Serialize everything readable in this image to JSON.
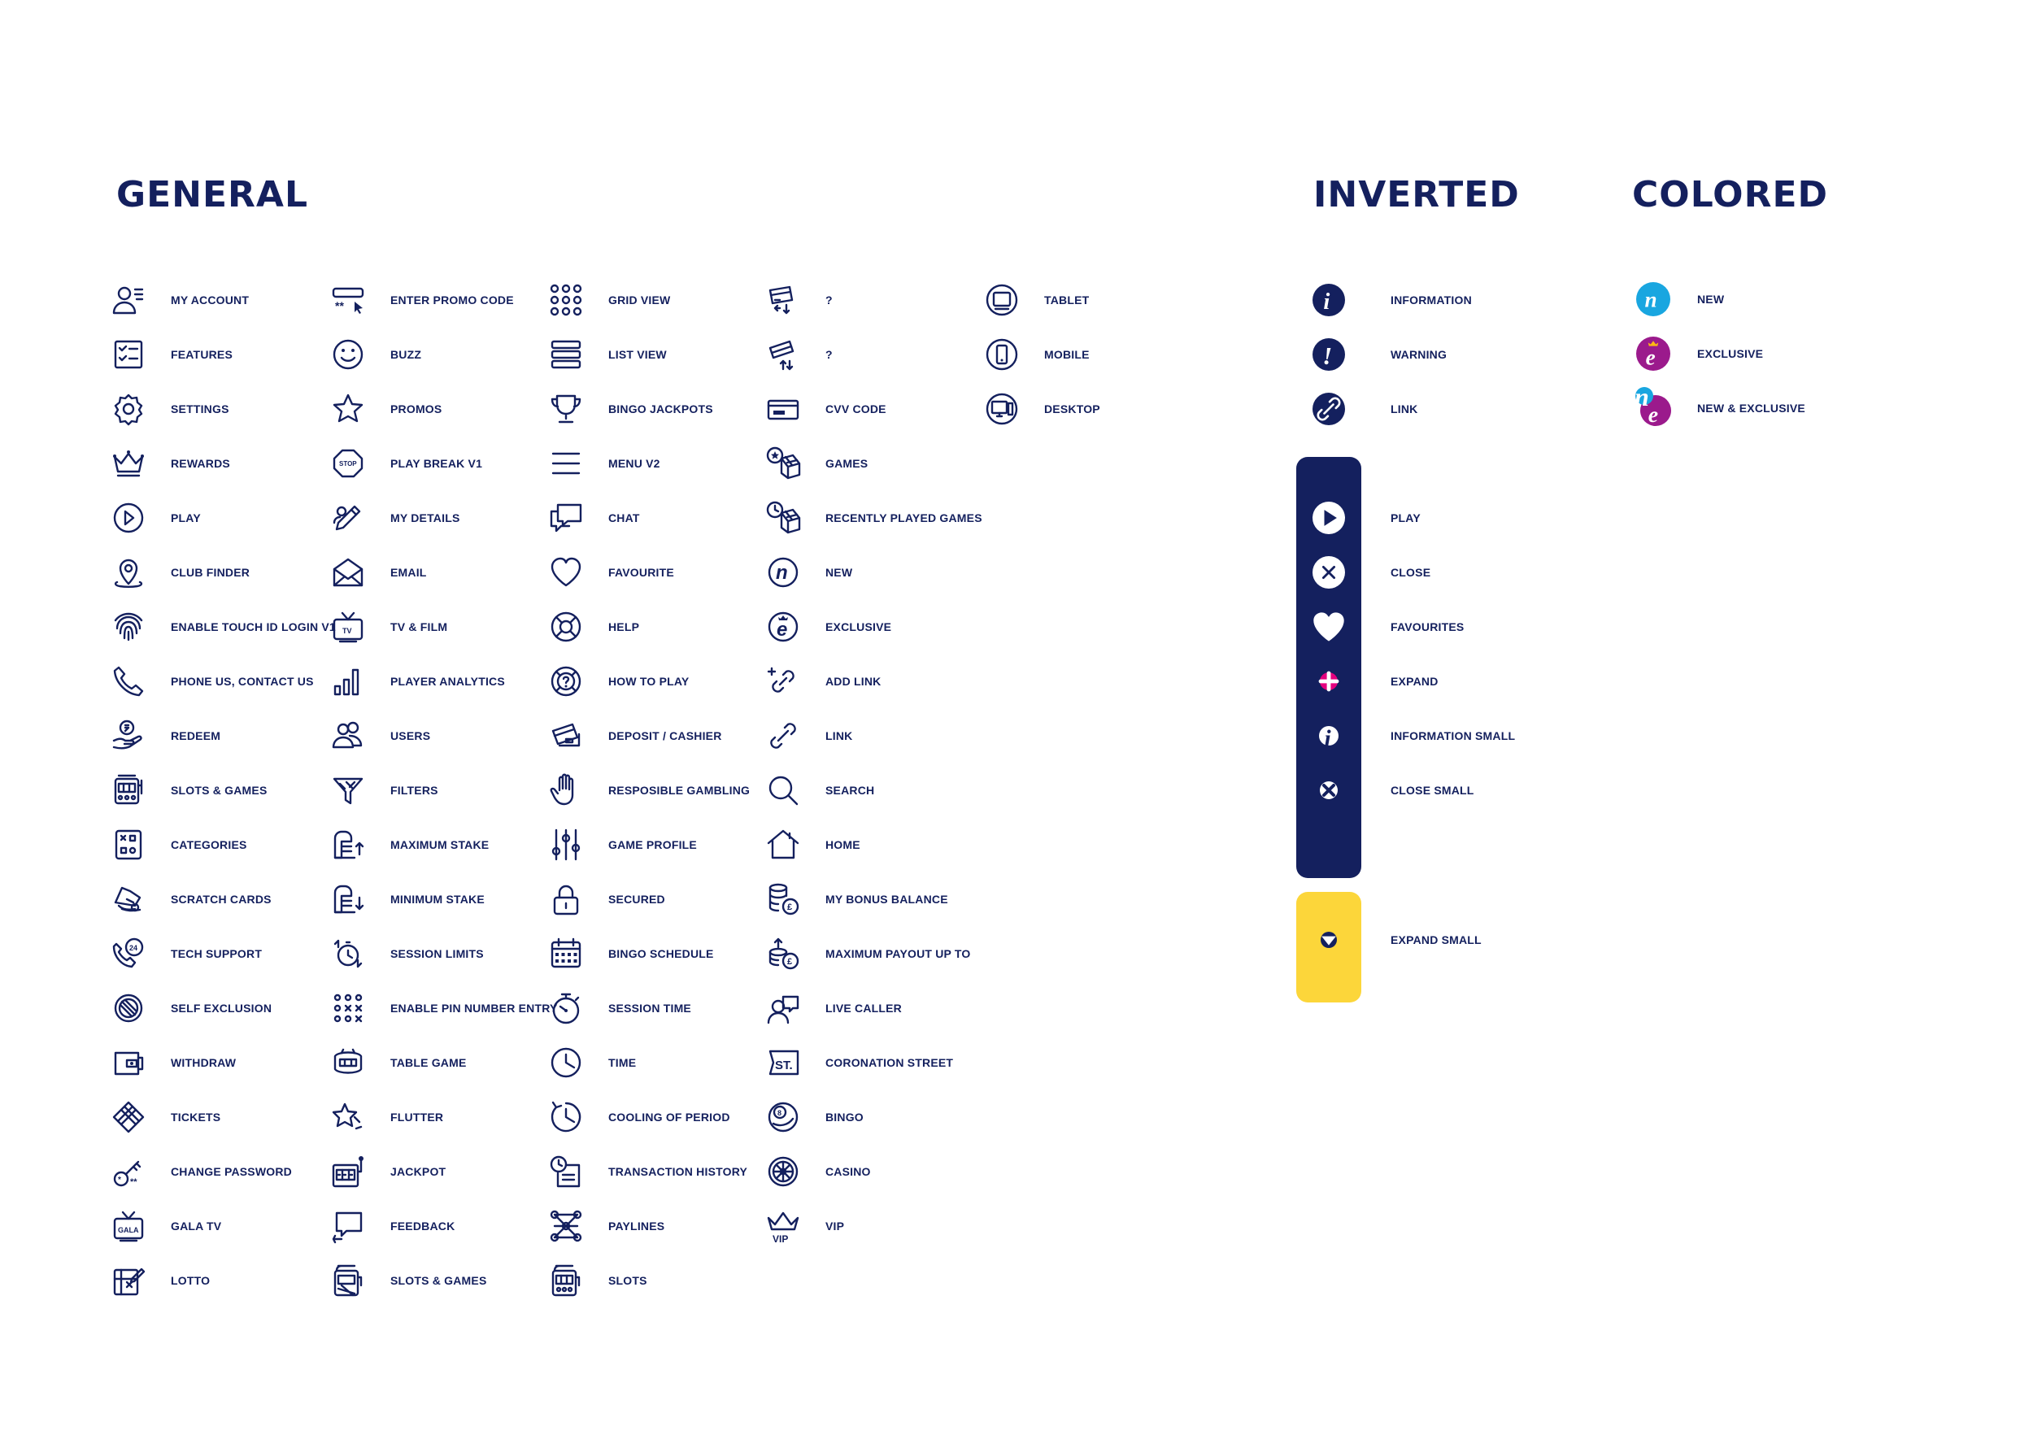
{
  "headings": {
    "general": "GENERAL",
    "inverted": "INVERTED",
    "colored": "COLORED"
  },
  "colors": {
    "navy": "#14205e",
    "yellow": "#fcd63a",
    "pink": "#e5007e",
    "cyan": "#19a6e0",
    "purple": "#9b1a8c"
  },
  "general": {
    "col1": [
      {
        "icon": "my-account-icon",
        "label": "MY ACCOUNT"
      },
      {
        "icon": "features-icon",
        "label": "FEATURES"
      },
      {
        "icon": "settings-icon",
        "label": "SETTINGS"
      },
      {
        "icon": "rewards-icon",
        "label": "REWARDS"
      },
      {
        "icon": "play-icon",
        "label": "PLAY"
      },
      {
        "icon": "club-finder-icon",
        "label": "CLUB FINDER"
      },
      {
        "icon": "fingerprint-icon",
        "label": "ENABLE TOUCH ID LOGIN V1"
      },
      {
        "icon": "phone-icon",
        "label": "PHONE US, CONTACT US"
      },
      {
        "icon": "redeem-icon",
        "label": "REDEEM"
      },
      {
        "icon": "slots-games-icon",
        "label": "SLOTS & GAMES"
      },
      {
        "icon": "categories-icon",
        "label": "CATEGORIES"
      },
      {
        "icon": "scratch-cards-icon",
        "label": "SCRATCH CARDS"
      },
      {
        "icon": "tech-support-icon",
        "label": "TECH SUPPORT"
      },
      {
        "icon": "self-exclusion-icon",
        "label": "SELF EXCLUSION"
      },
      {
        "icon": "withdraw-icon",
        "label": "WITHDRAW"
      },
      {
        "icon": "tickets-icon",
        "label": "TICKETS"
      },
      {
        "icon": "change-password-icon",
        "label": "CHANGE PASSWORD"
      },
      {
        "icon": "gala-tv-icon",
        "label": "GALA TV",
        "tvText": "GALA"
      },
      {
        "icon": "lotto-icon",
        "label": "LOTTO"
      }
    ],
    "col2": [
      {
        "icon": "promo-code-icon",
        "label": "ENTER PROMO CODE",
        "code": "**"
      },
      {
        "icon": "buzz-icon",
        "label": "BUZZ"
      },
      {
        "icon": "star-icon",
        "label": "PROMOS"
      },
      {
        "icon": "stop-icon",
        "label": "PLAY BREAK  V1",
        "stopText": "STOP"
      },
      {
        "icon": "pencil-icon",
        "label": "MY DETAILS"
      },
      {
        "icon": "email-icon",
        "label": "EMAIL"
      },
      {
        "icon": "tv-icon",
        "label": "TV & FILM",
        "tvText": "TV"
      },
      {
        "icon": "analytics-icon",
        "label": "PLAYER ANALYTICS"
      },
      {
        "icon": "users-icon",
        "label": "USERS"
      },
      {
        "icon": "filters-icon",
        "label": "FILTERS"
      },
      {
        "icon": "maximum-stake-icon",
        "label": "MAXIMUM STAKE"
      },
      {
        "icon": "minimum-stake-icon",
        "label": "MINIMUM STAKE"
      },
      {
        "icon": "session-limits-icon",
        "label": "SESSION LIMITS"
      },
      {
        "icon": "pin-entry-icon",
        "label": "ENABLE PIN NUMBER ENTRY"
      },
      {
        "icon": "table-game-icon",
        "label": "TABLE GAME"
      },
      {
        "icon": "flutter-icon",
        "label": "FLUTTER"
      },
      {
        "icon": "jackpot-icon",
        "label": "JACKPOT"
      },
      {
        "icon": "feedback-icon",
        "label": "FEEDBACK"
      },
      {
        "icon": "slots-games-2-icon",
        "label": "SLOTS & GAMES"
      }
    ],
    "col3": [
      {
        "icon": "grid-view-icon",
        "label": "GRID VIEW"
      },
      {
        "icon": "list-view-icon",
        "label": "LIST VIEW"
      },
      {
        "icon": "trophy-icon",
        "label": "BINGO JACKPOTS"
      },
      {
        "icon": "menu-icon",
        "label": "MENU V2"
      },
      {
        "icon": "chat-icon",
        "label": "CHAT"
      },
      {
        "icon": "heart-icon",
        "label": "FAVOURITE"
      },
      {
        "icon": "help-icon",
        "label": "HELP"
      },
      {
        "icon": "how-to-play-icon",
        "label": "HOW TO PLAY"
      },
      {
        "icon": "deposit-icon",
        "label": "DEPOSIT / CASHIER"
      },
      {
        "icon": "hand-icon",
        "label": "RESPOSIBLE GAMBLING"
      },
      {
        "icon": "sliders-icon",
        "label": "GAME PROFILE"
      },
      {
        "icon": "lock-icon",
        "label": "SECURED"
      },
      {
        "icon": "calendar-icon",
        "label": "BINGO SCHEDULE"
      },
      {
        "icon": "stopwatch-icon",
        "label": "SESSION TIME"
      },
      {
        "icon": "clock-icon",
        "label": "TIME"
      },
      {
        "icon": "cooling-icon",
        "label": "COOLING OF PERIOD"
      },
      {
        "icon": "transaction-history-icon",
        "label": "TRANSACTION HISTORY"
      },
      {
        "icon": "paylines-icon",
        "label": "PAYLINES"
      },
      {
        "icon": "slots-icon",
        "label": "SLOTS"
      }
    ],
    "col4": [
      {
        "icon": "card-exchange-icon",
        "label": "?"
      },
      {
        "icon": "card-transfer-icon",
        "label": "?"
      },
      {
        "icon": "cvv-icon",
        "label": "CVV CODE"
      },
      {
        "icon": "games-icon",
        "label": "GAMES"
      },
      {
        "icon": "recent-games-icon",
        "label": "RECENTLY PLAYED GAMES"
      },
      {
        "icon": "new-icon",
        "label": "NEW",
        "glyph": "n"
      },
      {
        "icon": "exclusive-icon",
        "label": "EXCLUSIVE",
        "glyph": "e"
      },
      {
        "icon": "add-link-icon",
        "label": "ADD LINK"
      },
      {
        "icon": "link-icon",
        "label": "LINK"
      },
      {
        "icon": "search-icon",
        "label": "SEARCH"
      },
      {
        "icon": "home-icon",
        "label": "HOME"
      },
      {
        "icon": "bonus-balance-icon",
        "label": "MY BONUS BALANCE"
      },
      {
        "icon": "max-payout-icon",
        "label": "MAXIMUM PAYOUT UP TO"
      },
      {
        "icon": "live-caller-icon",
        "label": "LIVE CALLER"
      },
      {
        "icon": "coronation-street-icon",
        "label": "CORONATION STREET",
        "glyph": "ST."
      },
      {
        "icon": "bingo-icon",
        "label": "BINGO"
      },
      {
        "icon": "casino-icon",
        "label": "CASINO"
      },
      {
        "icon": "vip-icon",
        "label": "VIP",
        "glyph": "VIP"
      }
    ],
    "col5": [
      {
        "icon": "tablet-icon",
        "label": "TABLET"
      },
      {
        "icon": "mobile-icon",
        "label": "MOBILE"
      },
      {
        "icon": "desktop-icon",
        "label": "DESKTOP"
      }
    ]
  },
  "inverted": {
    "top": [
      {
        "icon": "information-icon",
        "label": "INFORMATION"
      },
      {
        "icon": "warning-icon",
        "label": "WARNING"
      },
      {
        "icon": "link-circle-icon",
        "label": "LINK"
      }
    ],
    "bar": [
      {
        "icon": "play-circle-icon",
        "label": "PLAY"
      },
      {
        "icon": "close-circle-icon",
        "label": "CLOSE"
      },
      {
        "icon": "heart-filled-icon",
        "label": "FAVOURITES"
      },
      {
        "icon": "expand-plus-icon",
        "label": "EXPAND"
      },
      {
        "icon": "information-small-icon",
        "label": "INFORMATION SMALL"
      },
      {
        "icon": "close-small-icon",
        "label": "CLOSE SMALL"
      }
    ],
    "yellow": [
      {
        "icon": "expand-small-icon",
        "label": "EXPAND SMALL"
      }
    ]
  },
  "colored": [
    {
      "icon": "new-badge-icon",
      "label": "NEW",
      "glyph": "n"
    },
    {
      "icon": "exclusive-badge-icon",
      "label": "EXCLUSIVE",
      "glyph": "e"
    },
    {
      "icon": "new-exclusive-badge-icon",
      "label": "NEW & EXCLUSIVE",
      "glyph": "ne"
    }
  ]
}
